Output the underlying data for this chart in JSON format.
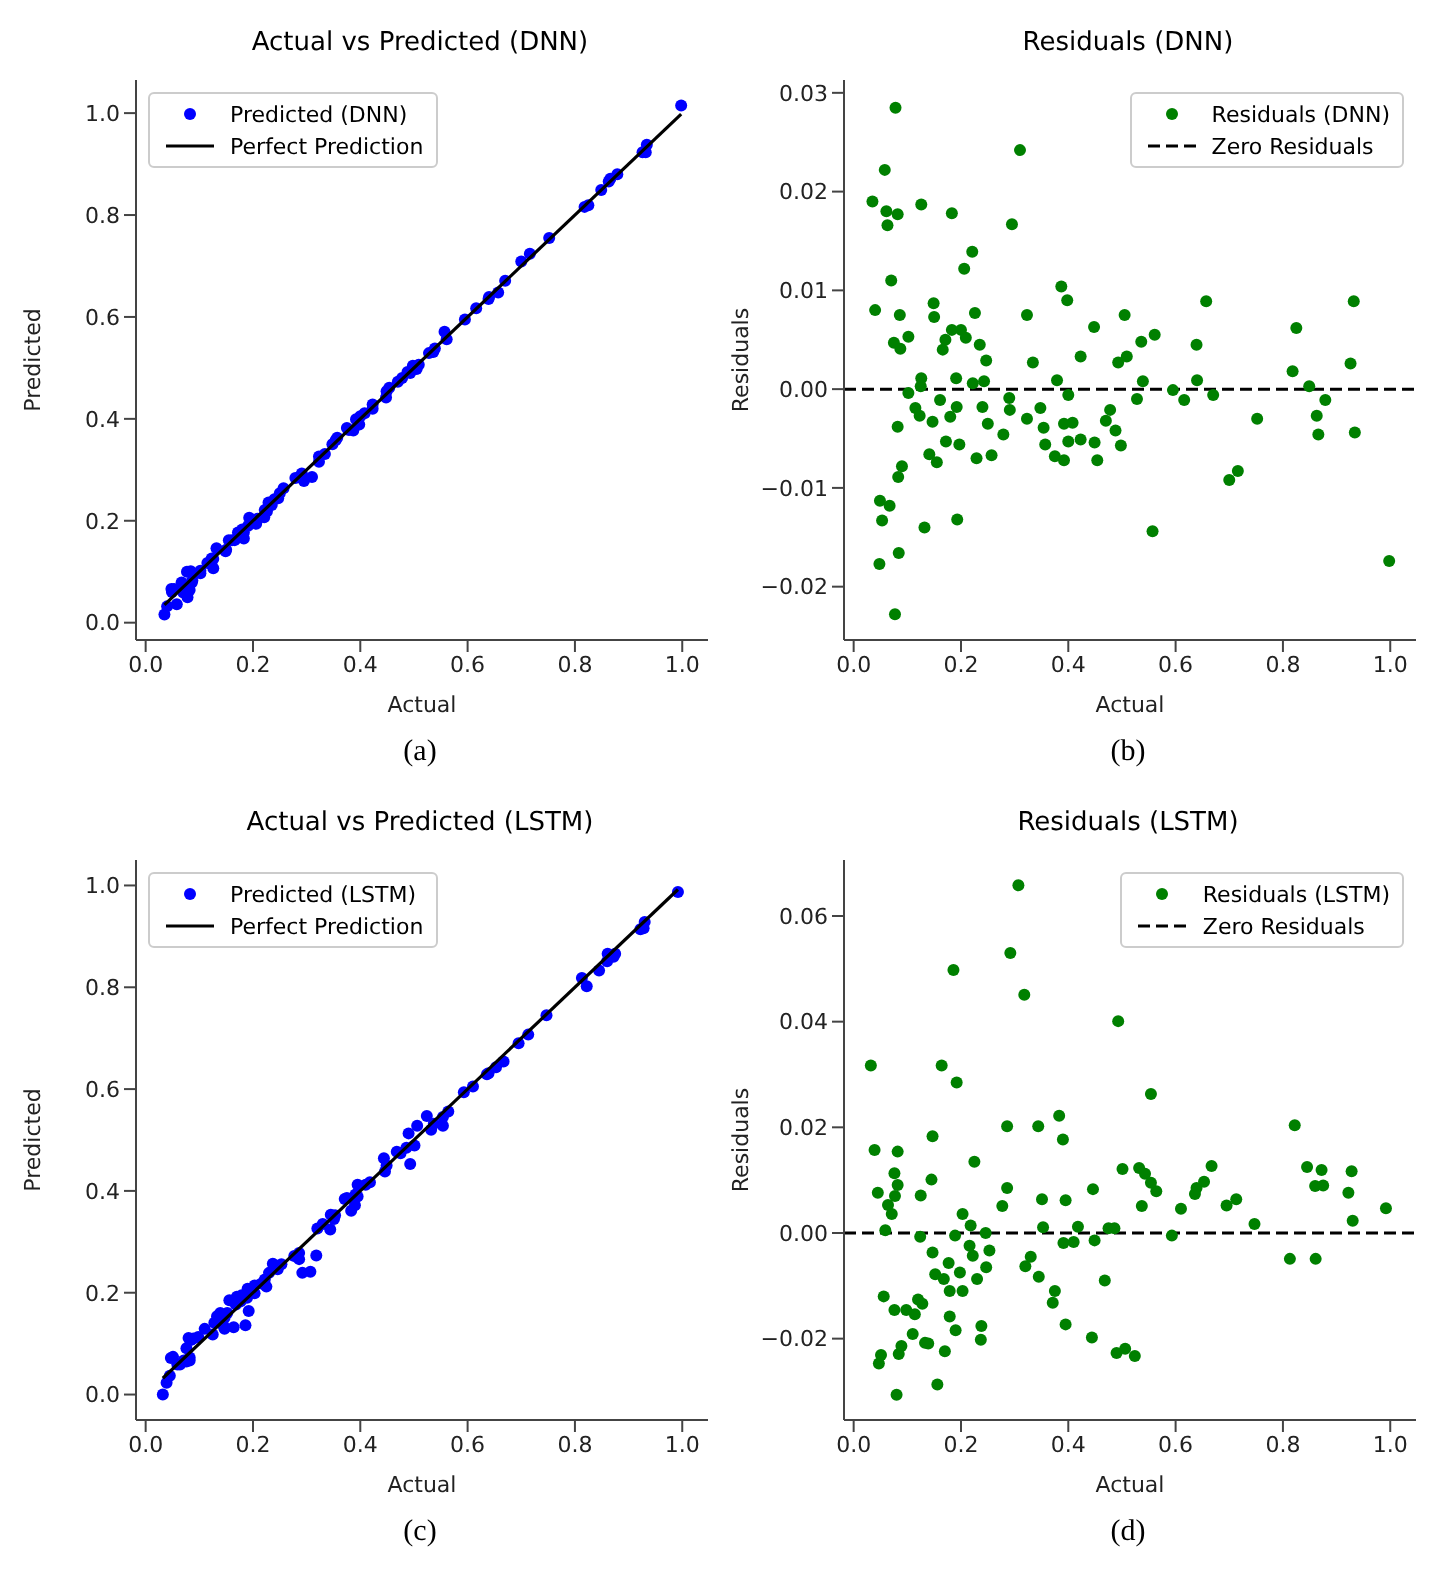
{
  "chart_data": [
    {
      "type": "scatter",
      "title": "Actual vs Predicted (DNN)",
      "xlabel": "Actual",
      "ylabel": "Predicted",
      "annotations": [
        "(a)"
      ],
      "legend": "top left",
      "xlim": [
        -0.018,
        1.048
      ],
      "ylim": [
        -0.034,
        1.065
      ],
      "xticks": [
        {
          "value": 0,
          "label": "0.0"
        },
        {
          "value": 0.2,
          "label": "0.2"
        },
        {
          "value": 0.4,
          "label": "0.4"
        },
        {
          "value": 0.6,
          "label": "0.6"
        },
        {
          "value": 0.8,
          "label": "0.8"
        },
        {
          "value": 1,
          "label": "1.0"
        }
      ],
      "yticks": [
        {
          "value": 0,
          "label": "0.0"
        },
        {
          "value": 0.2,
          "label": "0.2"
        },
        {
          "value": 0.4,
          "label": "0.4"
        },
        {
          "value": 0.6,
          "label": "0.6"
        },
        {
          "value": 0.8,
          "label": "0.8"
        },
        {
          "value": 1,
          "label": "1.0"
        }
      ],
      "series": [
        {
          "name": "Predicted (DNN)",
          "type": "scatter",
          "marker": "circle",
          "color": "#0000ff",
          "x": [
            0.078,
            0.31,
            0.058,
            0.035,
            0.082,
            0.126,
            0.183,
            0.295,
            0.221,
            0.206,
            0.07,
            0.387,
            0.398,
            0.149,
            0.657,
            0.932,
            0.04,
            0.15,
            0.086,
            0.226,
            0.323,
            0.505,
            0.448,
            0.825,
            0.183,
            0.561,
            0.102,
            0.209,
            0.536,
            0.087,
            0.166,
            0.235,
            0.639,
            0.423,
            0.509,
            0.493,
            0.334,
            0.247,
            0.926,
            0.818,
            0.126,
            0.191,
            0.222,
            0.379,
            0.64,
            0.539,
            0.102,
            0.595,
            0.849,
            0.616,
            0.67,
            0.879,
            0.161,
            0.291,
            0.115,
            0.24,
            0.348,
            0.478,
            0.528,
            0.123,
            0.18,
            0.863,
            0.323,
            0.408,
            0.47,
            0.752,
            0.25,
            0.354,
            0.488,
            0.279,
            0.866,
            0.934,
            0.423,
            0.4,
            0.449,
            0.172,
            0.357,
            0.498,
            0.155,
            0.229,
            0.257,
            0.375,
            0.392,
            0.454,
            0.716,
            0.7,
            0.049,
            0.067,
            0.053,
            0.132,
            0.193,
            0.557,
            0.048,
            0.084,
            0.998,
            0.077
          ],
          "values": [
            0.05,
            0.286,
            0.036,
            0.016,
            0.064,
            0.107,
            0.165,
            0.278,
            0.207,
            0.194,
            0.059,
            0.377,
            0.389,
            0.14,
            0.648,
            0.923,
            0.032,
            0.143,
            0.079,
            0.218,
            0.316,
            0.498,
            0.442,
            0.819,
            0.177,
            0.556,
            0.097,
            0.204,
            0.531,
            0.083,
            0.162,
            0.231,
            0.635,
            0.42,
            0.506,
            0.49,
            0.331,
            0.244,
            0.923,
            0.816,
            0.125,
            0.19,
            0.221,
            0.378,
            0.639,
            0.538,
            0.102,
            0.595,
            0.849,
            0.617,
            0.671,
            0.88,
            0.162,
            0.293,
            0.117,
            0.242,
            0.35,
            0.48,
            0.529,
            0.126,
            0.183,
            0.866,
            0.326,
            0.411,
            0.473,
            0.755,
            0.254,
            0.358,
            0.492,
            0.284,
            0.871,
            0.938,
            0.428,
            0.405,
            0.454,
            0.177,
            0.363,
            0.504,
            0.162,
            0.236,
            0.264,
            0.382,
            0.399,
            0.461,
            0.724,
            0.709,
            0.06,
            0.079,
            0.066,
            0.146,
            0.206,
            0.571,
            0.066,
            0.101,
            1.015,
            0.1
          ]
        },
        {
          "name": "Perfect Prediction",
          "type": "line",
          "marker": "none",
          "color": "#000000",
          "x": [
            0.035,
            0.998
          ],
          "values": [
            0.035,
            0.998
          ]
        }
      ]
    },
    {
      "type": "scatter",
      "title": "Residuals (DNN)",
      "xlabel": "Actual",
      "ylabel": "Residuals",
      "annotations": [
        "(b)"
      ],
      "legend": "top right",
      "xlim": [
        -0.018,
        1.048
      ],
      "ylim": [
        -0.0254,
        0.0313
      ],
      "xticks": [
        {
          "value": 0,
          "label": "0.0"
        },
        {
          "value": 0.2,
          "label": "0.2"
        },
        {
          "value": 0.4,
          "label": "0.4"
        },
        {
          "value": 0.6,
          "label": "0.6"
        },
        {
          "value": 0.8,
          "label": "0.8"
        },
        {
          "value": 1,
          "label": "1.0"
        }
      ],
      "yticks": [
        {
          "value": -0.02,
          "label": "−0.02"
        },
        {
          "value": -0.01,
          "label": "−0.01"
        },
        {
          "value": 0,
          "label": "0.00"
        },
        {
          "value": 0.01,
          "label": "0.01"
        },
        {
          "value": 0.02,
          "label": "0.02"
        },
        {
          "value": 0.03,
          "label": "0.03"
        }
      ],
      "ref_lines": [
        {
          "axis": "y",
          "value": 0,
          "label": "Zero Residuals",
          "color": "#000000",
          "line_style": "dashed"
        }
      ],
      "series": [
        {
          "name": "Residuals (DNN)",
          "type": "scatter",
          "marker": "circle",
          "color": "#008000",
          "x": [
            0.078,
            0.31,
            0.058,
            0.035,
            0.061,
            0.082,
            0.063,
            0.126,
            0.183,
            0.295,
            0.221,
            0.206,
            0.07,
            0.387,
            0.398,
            0.149,
            0.657,
            0.932,
            0.04,
            0.15,
            0.086,
            0.226,
            0.323,
            0.505,
            0.448,
            0.825,
            0.183,
            0.2,
            0.561,
            0.102,
            0.075,
            0.209,
            0.171,
            0.536,
            0.087,
            0.166,
            0.235,
            0.639,
            0.423,
            0.509,
            0.493,
            0.334,
            0.247,
            0.926,
            0.818,
            0.126,
            0.191,
            0.222,
            0.243,
            0.379,
            0.64,
            0.539,
            0.102,
            0.125,
            0.595,
            0.849,
            0.4,
            0.616,
            0.67,
            0.879,
            0.161,
            0.29,
            0.291,
            0.115,
            0.192,
            0.24,
            0.348,
            0.478,
            0.528,
            0.123,
            0.18,
            0.863,
            0.147,
            0.323,
            0.408,
            0.392,
            0.47,
            0.752,
            0.082,
            0.25,
            0.354,
            0.488,
            0.279,
            0.866,
            0.934,
            0.423,
            0.4,
            0.449,
            0.172,
            0.197,
            0.357,
            0.498,
            0.141,
            0.155,
            0.229,
            0.257,
            0.375,
            0.392,
            0.454,
            0.09,
            0.716,
            0.7,
            0.083,
            0.049,
            0.067,
            0.053,
            0.132,
            0.193,
            0.557,
            0.048,
            0.084,
            0.998,
            0.077
          ],
          "values": [
            0.0285,
            0.0242,
            0.0222,
            0.019,
            0.018,
            0.0177,
            0.0166,
            0.0187,
            0.0178,
            0.0167,
            0.0139,
            0.0122,
            0.011,
            0.0104,
            0.009,
            0.0087,
            0.0089,
            0.0089,
            0.008,
            0.0073,
            0.0075,
            0.0077,
            0.0075,
            0.0075,
            0.0063,
            0.0062,
            0.006,
            0.006,
            0.0055,
            0.0053,
            0.0047,
            0.0052,
            0.005,
            0.0048,
            0.0041,
            0.004,
            0.0045,
            0.0045,
            0.0033,
            0.0033,
            0.0027,
            0.0027,
            0.0029,
            0.0026,
            0.0018,
            0.0011,
            0.0011,
            0.0006,
            0.0008,
            0.0009,
            0.0009,
            0.0008,
            -0.0004,
            0.0003,
            -0.0001,
            0.0003,
            -0.0006,
            -0.0011,
            -0.0006,
            -0.0011,
            -0.0011,
            -0.0009,
            -0.0021,
            -0.0019,
            -0.0018,
            -0.0018,
            -0.0019,
            -0.0021,
            -0.001,
            -0.0027,
            -0.0028,
            -0.0027,
            -0.0033,
            -0.003,
            -0.0034,
            -0.0035,
            -0.0032,
            -0.003,
            -0.0038,
            -0.0035,
            -0.0039,
            -0.0042,
            -0.0046,
            -0.0046,
            -0.0044,
            -0.0051,
            -0.0053,
            -0.0054,
            -0.0053,
            -0.0056,
            -0.0056,
            -0.0057,
            -0.0066,
            -0.0074,
            -0.007,
            -0.0067,
            -0.0068,
            -0.0072,
            -0.0072,
            -0.0078,
            -0.0083,
            -0.0092,
            -0.0089,
            -0.0113,
            -0.0118,
            -0.0133,
            -0.014,
            -0.0132,
            -0.0144,
            -0.0177,
            -0.0166,
            -0.0174,
            -0.0228
          ]
        }
      ]
    },
    {
      "type": "scatter",
      "title": "Actual vs Predicted (LSTM)",
      "xlabel": "Actual",
      "ylabel": "Predicted",
      "annotations": [
        "(c)"
      ],
      "legend": "top left",
      "xlim": [
        -0.018,
        1.048
      ],
      "ylim": [
        -0.05,
        1.05
      ],
      "xticks": [
        {
          "value": 0,
          "label": "0.0"
        },
        {
          "value": 0.2,
          "label": "0.2"
        },
        {
          "value": 0.4,
          "label": "0.4"
        },
        {
          "value": 0.6,
          "label": "0.6"
        },
        {
          "value": 0.8,
          "label": "0.8"
        },
        {
          "value": 1,
          "label": "1.0"
        }
      ],
      "yticks": [
        {
          "value": 0,
          "label": "0.0"
        },
        {
          "value": 0.2,
          "label": "0.2"
        },
        {
          "value": 0.4,
          "label": "0.4"
        },
        {
          "value": 0.6,
          "label": "0.6"
        },
        {
          "value": 0.8,
          "label": "0.8"
        },
        {
          "value": 1,
          "label": "1.0"
        }
      ],
      "series": [
        {
          "name": "Predicted (LSTM)",
          "type": "scatter",
          "marker": "circle",
          "color": "#0000ff",
          "x": [
            0.307,
            0.292,
            0.186,
            0.318,
            0.493,
            0.032,
            0.164,
            0.192,
            0.554,
            0.383,
            0.822,
            0.286,
            0.344,
            0.39,
            0.147,
            0.039,
            0.082,
            0.225,
            0.845,
            0.501,
            0.667,
            0.532,
            0.872,
            0.928,
            0.076,
            0.145,
            0.653,
            0.082,
            0.554,
            0.86,
            0.875,
            0.639,
            0.045,
            0.564,
            0.286,
            0.446,
            0.636,
            0.125,
            0.922,
            0.351,
            0.395,
            0.064,
            0.277,
            0.537,
            0.61,
            0.992,
            0.713,
            0.695,
            0.071,
            0.203,
            0.93,
            0.747,
            0.353,
            0.418,
            0.475,
            0.486,
            0.059,
            0.246,
            0.189,
            0.593,
            0.391,
            0.41,
            0.449,
            0.216,
            0.253,
            0.147,
            0.222,
            0.813,
            0.861,
            0.177,
            0.33,
            0.32,
            0.152,
            0.168,
            0.23,
            0.345,
            0.468,
            0.203,
            0.375,
            0.371,
            0.128,
            0.076,
            0.098,
            0.179,
            0.19,
            0.395,
            0.11,
            0.237,
            0.133,
            0.139,
            0.444,
            0.089,
            0.084,
            0.17,
            0.051,
            0.047,
            0.49,
            0.506,
            0.524,
            0.156,
            0.08
          ],
          "values": [
            0.241,
            0.239,
            0.136,
            0.273,
            0.453,
            0,
            0.132,
            0.164,
            0.528,
            0.361,
            0.802,
            0.266,
            0.324,
            0.372,
            0.129,
            0.023,
            0.067,
            0.212,
            0.833,
            0.489,
            0.654,
            0.52,
            0.86,
            0.916,
            0.065,
            0.135,
            0.643,
            0.073,
            0.545,
            0.851,
            0.866,
            0.631,
            0.037,
            0.556,
            0.278,
            0.438,
            0.629,
            0.118,
            0.914,
            0.345,
            0.389,
            0.059,
            0.272,
            0.532,
            0.605,
            0.987,
            0.707,
            0.69,
            0.067,
            0.199,
            0.928,
            0.745,
            0.352,
            0.417,
            0.474,
            0.485,
            0.059,
            0.246,
            0.19,
            0.594,
            0.393,
            0.412,
            0.45,
            0.218,
            0.256,
            0.151,
            0.226,
            0.818,
            0.866,
            0.183,
            0.335,
            0.326,
            0.16,
            0.177,
            0.239,
            0.353,
            0.477,
            0.214,
            0.386,
            0.384,
            0.141,
            0.091,
            0.113,
            0.195,
            0.208,
            0.412,
            0.129,
            0.257,
            0.154,
            0.16,
            0.464,
            0.11,
            0.107,
            0.192,
            0.074,
            0.072,
            0.513,
            0.528,
            0.547,
            0.185,
            0.111
          ]
        },
        {
          "name": "Perfect Prediction",
          "type": "line",
          "marker": "none",
          "color": "#000000",
          "x": [
            0.032,
            0.992
          ],
          "values": [
            0.032,
            0.992
          ]
        }
      ]
    },
    {
      "type": "scatter",
      "title": "Residuals (LSTM)",
      "xlabel": "Actual",
      "ylabel": "Residuals",
      "annotations": [
        "(d)"
      ],
      "legend": "top right",
      "xlim": [
        -0.018,
        1.048
      ],
      "ylim": [
        -0.0354,
        0.0706
      ],
      "xticks": [
        {
          "value": 0,
          "label": "0.0"
        },
        {
          "value": 0.2,
          "label": "0.2"
        },
        {
          "value": 0.4,
          "label": "0.4"
        },
        {
          "value": 0.6,
          "label": "0.6"
        },
        {
          "value": 0.8,
          "label": "0.8"
        },
        {
          "value": 1,
          "label": "1.0"
        }
      ],
      "yticks": [
        {
          "value": -0.02,
          "label": "−0.02"
        },
        {
          "value": 0,
          "label": "0.00"
        },
        {
          "value": 0.02,
          "label": "0.02"
        },
        {
          "value": 0.04,
          "label": "0.04"
        },
        {
          "value": 0.06,
          "label": "0.06"
        }
      ],
      "ref_lines": [
        {
          "axis": "y",
          "value": 0,
          "label": "Zero Residuals",
          "color": "#000000",
          "line_style": "dashed"
        }
      ],
      "series": [
        {
          "name": "Residuals (LSTM)",
          "type": "scatter",
          "marker": "circle",
          "color": "#008000",
          "x": [
            0.307,
            0.292,
            0.186,
            0.318,
            0.493,
            0.032,
            0.164,
            0.192,
            0.554,
            0.383,
            0.822,
            0.286,
            0.344,
            0.39,
            0.147,
            0.039,
            0.082,
            0.225,
            0.845,
            0.501,
            0.667,
            0.532,
            0.872,
            0.928,
            0.076,
            0.543,
            0.145,
            0.653,
            0.082,
            0.554,
            0.86,
            0.875,
            0.639,
            0.045,
            0.564,
            0.286,
            0.446,
            0.636,
            0.125,
            0.922,
            0.077,
            0.351,
            0.395,
            0.064,
            0.277,
            0.537,
            0.61,
            0.992,
            0.713,
            0.695,
            0.071,
            0.203,
            0.93,
            0.747,
            0.218,
            0.353,
            0.418,
            0.475,
            0.486,
            0.059,
            0.246,
            0.124,
            0.189,
            0.593,
            0.391,
            0.41,
            0.449,
            0.216,
            0.253,
            0.147,
            0.222,
            0.813,
            0.861,
            0.177,
            0.33,
            0.32,
            0.247,
            0.198,
            0.152,
            0.168,
            0.23,
            0.345,
            0.468,
            0.179,
            0.203,
            0.375,
            0.056,
            0.371,
            0.12,
            0.128,
            0.076,
            0.098,
            0.114,
            0.179,
            0.19,
            0.395,
            0.238,
            0.11,
            0.237,
            0.133,
            0.139,
            0.444,
            0.089,
            0.084,
            0.17,
            0.051,
            0.047,
            0.49,
            0.506,
            0.524,
            0.156,
            0.08
          ],
          "values": [
            0.0658,
            0.053,
            0.0498,
            0.0451,
            0.0401,
            0.0317,
            0.0317,
            0.0285,
            0.0263,
            0.0222,
            0.0204,
            0.0202,
            0.0202,
            0.0177,
            0.0183,
            0.0157,
            0.0154,
            0.0135,
            0.0125,
            0.0121,
            0.0127,
            0.0123,
            0.0119,
            0.0117,
            0.0113,
            0.0112,
            0.0101,
            0.0097,
            0.0091,
            0.0095,
            0.0089,
            0.009,
            0.0085,
            0.0076,
            0.0079,
            0.0085,
            0.0083,
            0.0074,
            0.0071,
            0.0076,
            0.007,
            0.0064,
            0.0062,
            0.0053,
            0.0051,
            0.0051,
            0.0046,
            0.0047,
            0.0064,
            0.0052,
            0.0036,
            0.0036,
            0.0023,
            0.0017,
            0.0014,
            0.0011,
            0.0012,
            0.0009,
            0.0009,
            0.0005,
            0,
            -0.0007,
            -0.0005,
            -0.0005,
            -0.0019,
            -0.0017,
            -0.0014,
            -0.0024,
            -0.0033,
            -0.0037,
            -0.0043,
            -0.0049,
            -0.0049,
            -0.0057,
            -0.0045,
            -0.0063,
            -0.0065,
            -0.0075,
            -0.0078,
            -0.0087,
            -0.0087,
            -0.0083,
            -0.009,
            -0.011,
            -0.011,
            -0.011,
            -0.012,
            -0.0132,
            -0.0126,
            -0.0134,
            -0.0146,
            -0.0146,
            -0.0154,
            -0.0158,
            -0.0184,
            -0.0173,
            -0.0176,
            -0.0191,
            -0.0202,
            -0.0208,
            -0.0209,
            -0.0198,
            -0.0214,
            -0.0229,
            -0.0224,
            -0.0231,
            -0.0247,
            -0.0227,
            -0.0219,
            -0.0233,
            -0.0287,
            -0.0306
          ]
        }
      ]
    }
  ]
}
